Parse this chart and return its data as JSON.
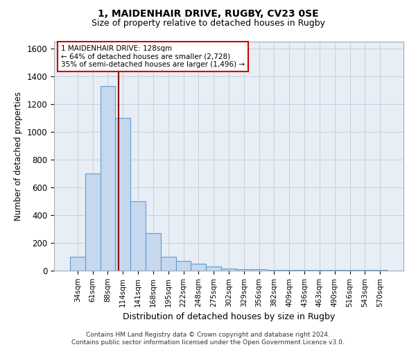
{
  "title1": "1, MAIDENHAIR DRIVE, RUGBY, CV23 0SE",
  "title2": "Size of property relative to detached houses in Rugby",
  "xlabel": "Distribution of detached houses by size in Rugby",
  "ylabel": "Number of detached properties",
  "annotation_line1": "1 MAIDENHAIR DRIVE: 128sqm",
  "annotation_line2": "← 64% of detached houses are smaller (2,728)",
  "annotation_line3": "35% of semi-detached houses are larger (1,496) →",
  "categories": [
    "34sqm",
    "61sqm",
    "88sqm",
    "114sqm",
    "141sqm",
    "168sqm",
    "195sqm",
    "222sqm",
    "248sqm",
    "275sqm",
    "302sqm",
    "329sqm",
    "356sqm",
    "382sqm",
    "409sqm",
    "436sqm",
    "463sqm",
    "490sqm",
    "516sqm",
    "543sqm",
    "570sqm"
  ],
  "values": [
    100,
    700,
    1330,
    1100,
    500,
    270,
    100,
    70,
    50,
    30,
    15,
    10,
    8,
    5,
    5,
    5,
    4,
    4,
    3,
    3,
    3
  ],
  "bar_color": "#c5d8ee",
  "bar_edge_color": "#5b9bd5",
  "red_line_x": 2.72,
  "red_line_color": "#8b0000",
  "annotation_box_color": "#cc0000",
  "ylim": [
    0,
    1650
  ],
  "yticks": [
    0,
    200,
    400,
    600,
    800,
    1000,
    1200,
    1400,
    1600
  ],
  "footer1": "Contains HM Land Registry data © Crown copyright and database right 2024.",
  "footer2": "Contains public sector information licensed under the Open Government Licence v3.0.",
  "background_color": "#ffffff",
  "grid_color": "#c8d0dc",
  "ax_bg_color": "#e8eef5"
}
